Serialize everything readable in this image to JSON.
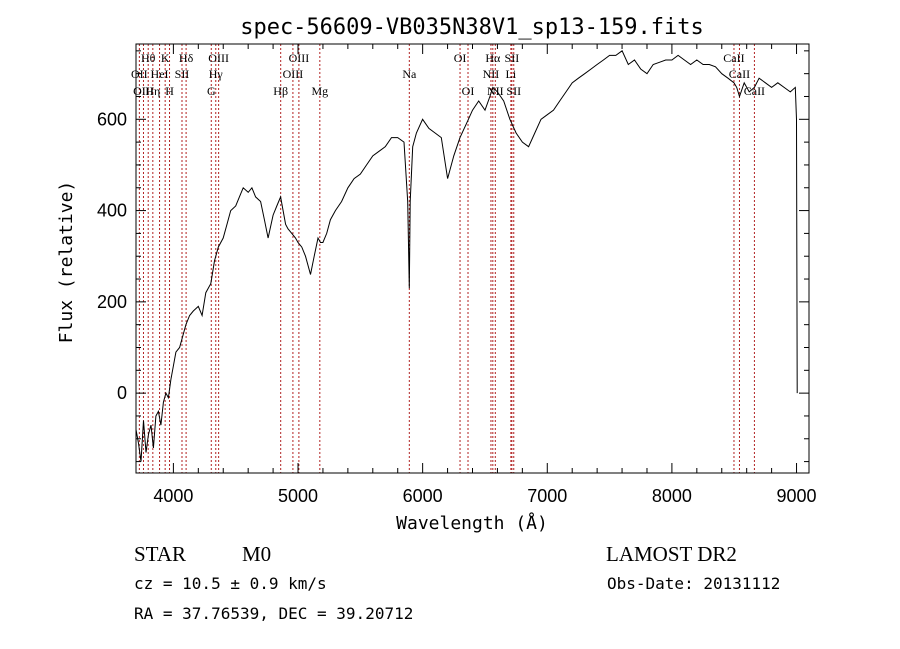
{
  "chart_data": {
    "type": "line",
    "title": "spec-56609-VB035N38V1_sp13-159.fits",
    "xlabel": "Wavelength (Å)",
    "ylabel": "Flux (relative)",
    "xlim": [
      3700,
      9100
    ],
    "ylim": [
      -175,
      765
    ],
    "xticks": [
      4000,
      5000,
      6000,
      7000,
      8000,
      9000
    ],
    "yticks": [
      0,
      200,
      400,
      600
    ],
    "grid": false,
    "series": [
      {
        "x": [
          3700,
          3720,
          3740,
          3760,
          3780,
          3800,
          3820,
          3840,
          3860,
          3880,
          3900,
          3920,
          3940,
          3960,
          3980,
          4000,
          4020,
          4050,
          4080,
          4100,
          4130,
          4160,
          4200,
          4230,
          4260,
          4300,
          4330,
          4360,
          4400,
          4430,
          4460,
          4500,
          4530,
          4560,
          4600,
          4630,
          4660,
          4700,
          4730,
          4760,
          4800,
          4830,
          4860,
          4880,
          4900,
          4920,
          4950,
          4980,
          5000,
          5030,
          5060,
          5100,
          5130,
          5160,
          5180,
          5200,
          5230,
          5260,
          5300,
          5350,
          5400,
          5450,
          5500,
          5550,
          5600,
          5650,
          5700,
          5750,
          5800,
          5850,
          5880,
          5893,
          5900,
          5920,
          5950,
          6000,
          6050,
          6100,
          6150,
          6200,
          6250,
          6300,
          6350,
          6400,
          6450,
          6500,
          6540,
          6563,
          6600,
          6650,
          6700,
          6750,
          6800,
          6850,
          6900,
          6950,
          7000,
          7050,
          7100,
          7150,
          7200,
          7250,
          7300,
          7350,
          7400,
          7450,
          7500,
          7550,
          7600,
          7650,
          7700,
          7750,
          7800,
          7850,
          7900,
          7950,
          8000,
          8050,
          8100,
          8150,
          8200,
          8250,
          8300,
          8350,
          8400,
          8450,
          8498,
          8520,
          8542,
          8580,
          8620,
          8662,
          8700,
          8750,
          8800,
          8850,
          8900,
          8950,
          8990,
          9000,
          9005
        ],
        "y": [
          -80,
          -110,
          -150,
          -60,
          -130,
          -90,
          -70,
          -120,
          -50,
          -40,
          -70,
          -20,
          0,
          -10,
          30,
          60,
          90,
          100,
          130,
          150,
          170,
          180,
          190,
          170,
          220,
          240,
          290,
          320,
          340,
          370,
          400,
          410,
          430,
          450,
          440,
          450,
          430,
          420,
          380,
          340,
          390,
          410,
          430,
          400,
          370,
          360,
          350,
          340,
          330,
          320,
          300,
          260,
          300,
          340,
          330,
          330,
          350,
          380,
          400,
          420,
          450,
          470,
          480,
          500,
          520,
          530,
          540,
          560,
          560,
          550,
          420,
          230,
          420,
          540,
          570,
          600,
          580,
          570,
          560,
          470,
          520,
          560,
          590,
          620,
          640,
          620,
          650,
          670,
          660,
          640,
          600,
          570,
          550,
          540,
          570,
          600,
          610,
          620,
          640,
          660,
          680,
          690,
          700,
          710,
          720,
          730,
          740,
          740,
          750,
          720,
          730,
          710,
          700,
          720,
          725,
          730,
          730,
          740,
          730,
          720,
          730,
          720,
          720,
          715,
          700,
          690,
          680,
          670,
          650,
          680,
          660,
          670,
          690,
          680,
          670,
          680,
          670,
          660,
          670,
          600,
          0
        ]
      }
    ],
    "lines": [
      {
        "label": "Hθ",
        "x": 3798,
        "row": 1
      },
      {
        "label": "OII",
        "x": 3727,
        "row": 2
      },
      {
        "label": "OIII",
        "x": 3760,
        "row": 3
      },
      {
        "label": "Hη",
        "x": 3835,
        "row": 3
      },
      {
        "label": "HeI",
        "x": 3889,
        "row": 2
      },
      {
        "label": "K",
        "x": 3934,
        "row": 1
      },
      {
        "label": "H",
        "x": 3969,
        "row": 3
      },
      {
        "label": "SII",
        "x": 4069,
        "row": 2
      },
      {
        "label": "Hδ",
        "x": 4102,
        "row": 1
      },
      {
        "label": "OIII",
        "x": 4363,
        "row": 1
      },
      {
        "label": "Hγ",
        "x": 4340,
        "row": 2
      },
      {
        "label": "G",
        "x": 4304,
        "row": 3
      },
      {
        "label": "Hβ",
        "x": 4861,
        "row": 3
      },
      {
        "label": "OIII",
        "x": 5007,
        "row": 1
      },
      {
        "label": "OIII",
        "x": 4959,
        "row": 2
      },
      {
        "label": "Mg",
        "x": 5175,
        "row": 3
      },
      {
        "label": "Na",
        "x": 5893,
        "row": 2
      },
      {
        "label": "OI",
        "x": 6300,
        "row": 1
      },
      {
        "label": "OI",
        "x": 6364,
        "row": 3
      },
      {
        "label": "Hα",
        "x": 6563,
        "row": 1
      },
      {
        "label": "NII",
        "x": 6548,
        "row": 2
      },
      {
        "label": "NII",
        "x": 6583,
        "row": 3
      },
      {
        "label": "SII",
        "x": 6716,
        "row": 1
      },
      {
        "label": "Li",
        "x": 6708,
        "row": 2
      },
      {
        "label": "SII",
        "x": 6731,
        "row": 3
      },
      {
        "label": "CaII",
        "x": 8498,
        "row": 1
      },
      {
        "label": "CaII",
        "x": 8542,
        "row": 2
      },
      {
        "label": "CaII",
        "x": 8662,
        "row": 3
      }
    ]
  },
  "info": {
    "class_label": "STAR",
    "subclass": "M0",
    "survey": "LAMOST DR2",
    "cz": "cz = 10.5 ± 0.9 km/s",
    "obs_date": "Obs-Date: 20131112",
    "coords": "RA =  37.76539, DEC =  39.20712"
  }
}
